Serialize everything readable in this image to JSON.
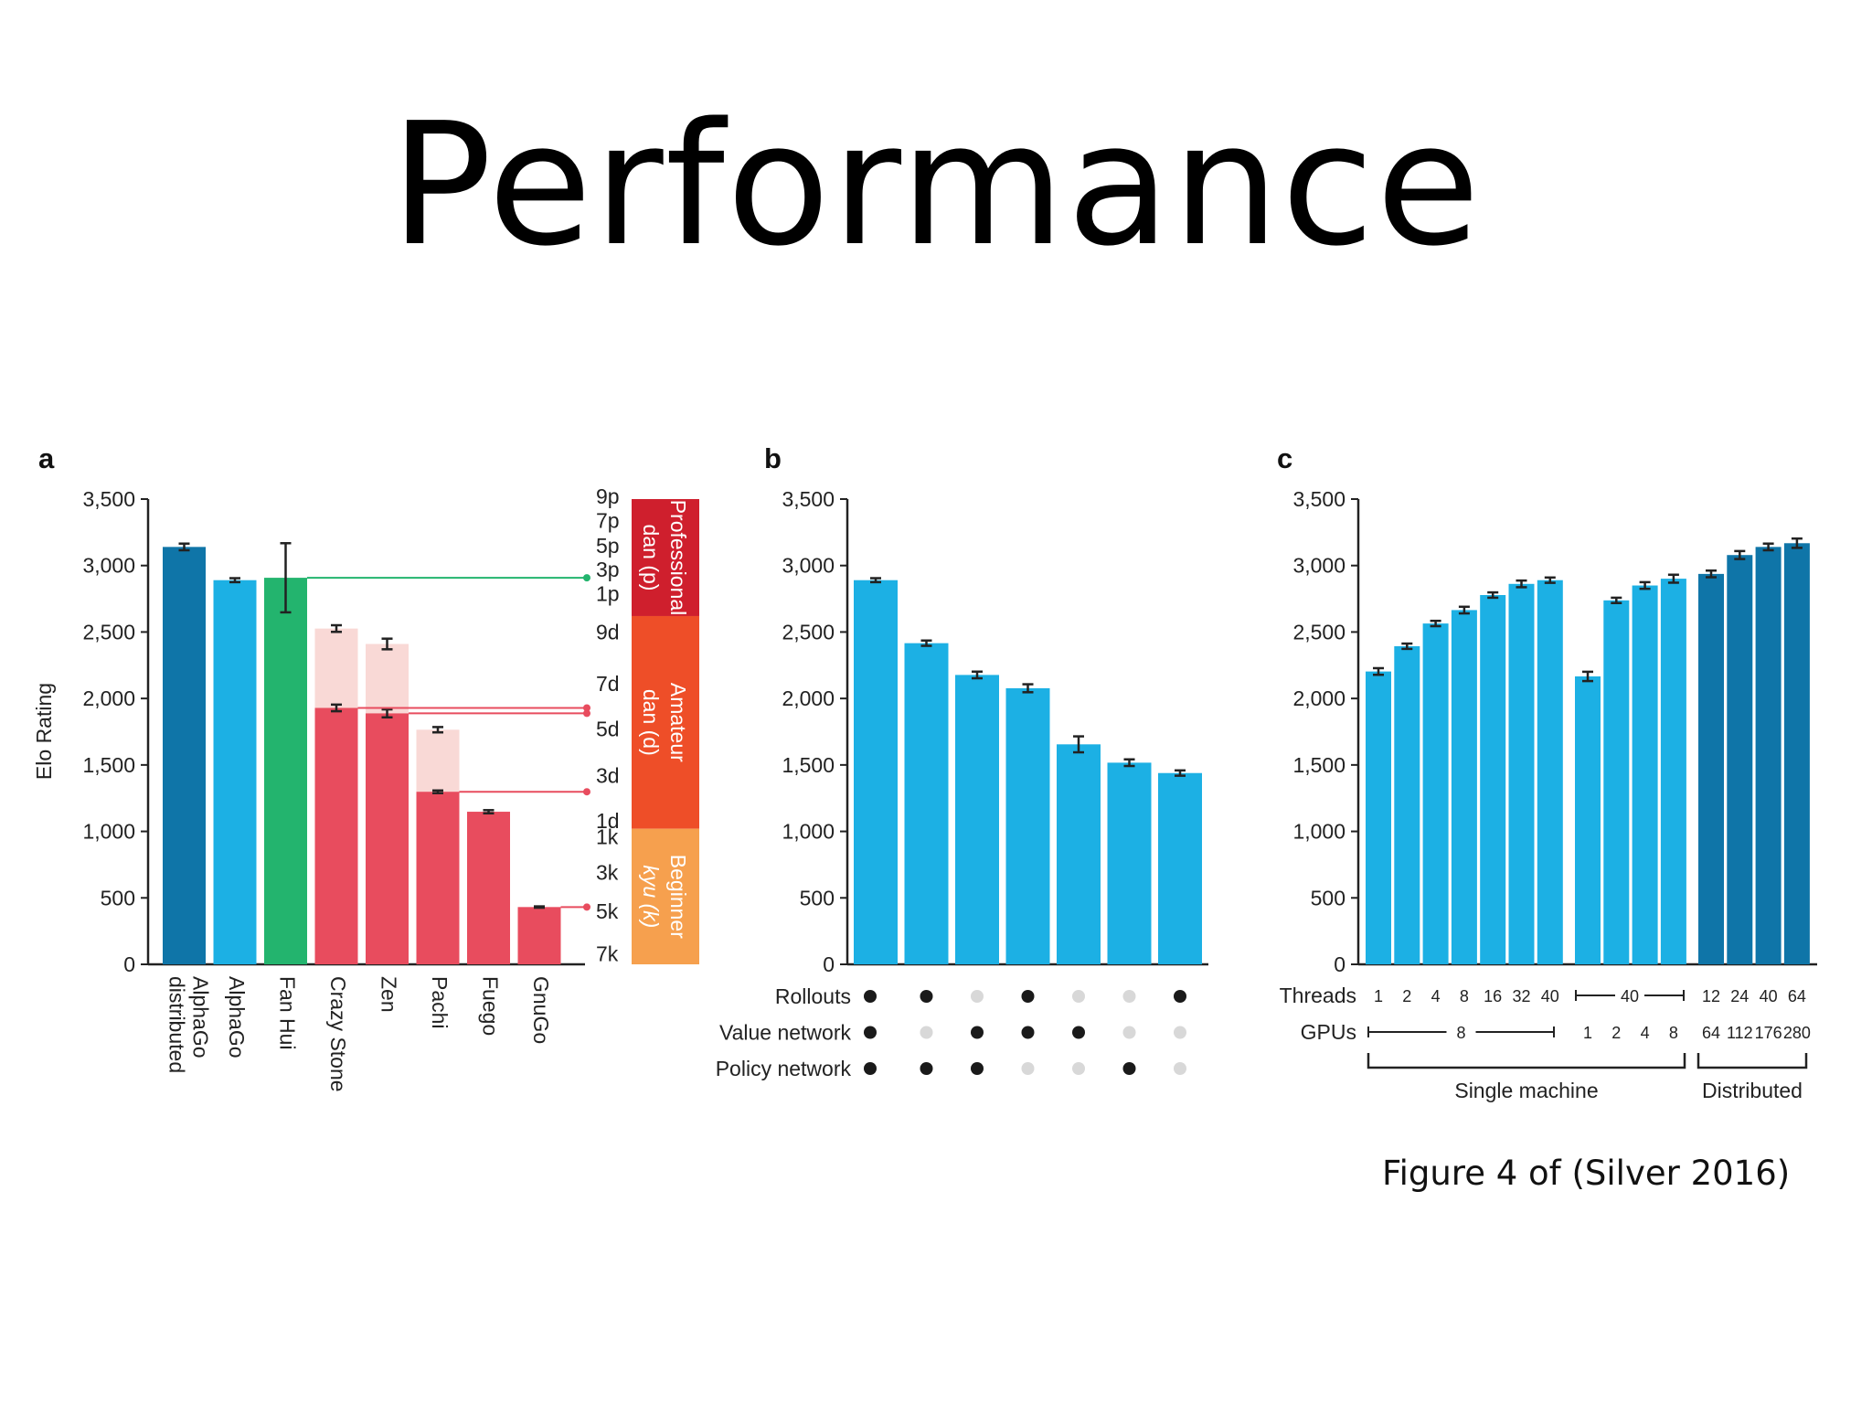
{
  "slide": {
    "title": "Performance",
    "caption": "Figure 4 of (Silver 2016)"
  },
  "colors": {
    "dark_blue": "#0f75a8",
    "light_blue": "#1cb0e4",
    "green": "#23b46e",
    "red": "#e84c5e",
    "pale_red": "#f9d9d6",
    "professional": "#cf1f2d",
    "amateur": "#ee4e28",
    "beginner": "#f6a04e",
    "dot_on": "#1a1a1a",
    "dot_off": "#d8d8d8"
  },
  "chart_data": [
    {
      "panel": "a",
      "type": "bar",
      "ylabel": "Elo Rating",
      "ylim": [
        0,
        3500
      ],
      "yticks": [
        "0",
        "500",
        "1,000",
        "1,500",
        "2,000",
        "2,500",
        "3,000",
        "3,500"
      ],
      "categories": [
        "AlphaGo distributed",
        "AlphaGo",
        "Fan Hui",
        "Crazy Stone",
        "Zen",
        "Pachi",
        "Fuego",
        "GnuGo"
      ],
      "category_lines": [
        [
          "AlphaGo",
          "distributed"
        ],
        [
          "AlphaGo"
        ],
        [
          "Fan Hui"
        ],
        [
          "Crazy Stone"
        ],
        [
          "Zen"
        ],
        [
          "Pachi"
        ],
        [
          "Fuego"
        ],
        [
          "GnuGo"
        ]
      ],
      "values": [
        3140,
        2890,
        2908,
        1929,
        1888,
        1298,
        1148,
        431
      ],
      "errors": [
        25,
        15,
        260,
        25,
        30,
        10,
        12,
        5
      ],
      "handicap_values": [
        null,
        null,
        null,
        2526,
        2410,
        1765,
        null,
        null
      ],
      "handicap_errors": [
        null,
        null,
        null,
        25,
        40,
        20,
        null,
        null
      ],
      "bar_colors": [
        "dark_blue",
        "light_blue",
        "green",
        "red",
        "red",
        "red",
        "red",
        "red"
      ],
      "rank_connectors": [
        2908,
        1929,
        1888,
        1298,
        431
      ],
      "rank_ticks": [
        {
          "label": "9p",
          "elo": 3520
        },
        {
          "label": "7p",
          "elo": 3340
        },
        {
          "label": "5p",
          "elo": 3150
        },
        {
          "label": "3p",
          "elo": 2970
        },
        {
          "label": "1p",
          "elo": 2790
        },
        {
          "label": "9d",
          "elo": 2500
        },
        {
          "label": "7d",
          "elo": 2110
        },
        {
          "label": "5d",
          "elo": 1770
        },
        {
          "label": "3d",
          "elo": 1420
        },
        {
          "label": "1d",
          "elo": 1080
        },
        {
          "label": "1k",
          "elo": 960
        },
        {
          "label": "3k",
          "elo": 690
        },
        {
          "label": "5k",
          "elo": 400
        },
        {
          "label": "7k",
          "elo": 80
        }
      ],
      "rank_bands": [
        {
          "label": "Professional dan (p)",
          "lines": [
            "Professional",
            "dan (p)"
          ],
          "from": 2620,
          "to": 3500,
          "color": "professional",
          "italic_second": false
        },
        {
          "label": "Amateur dan (d)",
          "lines": [
            "Amateur",
            "dan (d)"
          ],
          "from": 1020,
          "to": 2620,
          "color": "amateur",
          "italic_second": false
        },
        {
          "label": "Beginner kyu (k)",
          "lines": [
            "Beginner",
            "kyu (k)"
          ],
          "from": 0,
          "to": 1020,
          "color": "beginner",
          "italic_second": true
        }
      ]
    },
    {
      "panel": "b",
      "type": "bar",
      "ylim": [
        0,
        3500
      ],
      "yticks": [
        "0",
        "500",
        "1,000",
        "1,500",
        "2,000",
        "2,500",
        "3,000",
        "3,500"
      ],
      "values": [
        2890,
        2416,
        2177,
        2077,
        1655,
        1517,
        1439
      ],
      "errors": [
        15,
        20,
        25,
        30,
        60,
        25,
        20
      ],
      "config_rows": [
        {
          "label": "Rollouts",
          "flags": [
            1,
            1,
            0,
            1,
            0,
            0,
            1
          ]
        },
        {
          "label": "Value network",
          "flags": [
            1,
            0,
            1,
            1,
            1,
            0,
            0
          ]
        },
        {
          "label": "Policy network",
          "flags": [
            1,
            1,
            1,
            0,
            0,
            1,
            0
          ]
        }
      ]
    },
    {
      "panel": "c",
      "type": "bar",
      "ylim": [
        0,
        3500
      ],
      "yticks": [
        "0",
        "500",
        "1,000",
        "1,500",
        "2,000",
        "2,500",
        "3,000",
        "3,500"
      ],
      "values": [
        2203,
        2393,
        2564,
        2665,
        2778,
        2862,
        2890,
        2166,
        2738,
        2850,
        2901,
        2937,
        3079,
        3140,
        3168
      ],
      "errors": [
        25,
        20,
        20,
        25,
        20,
        25,
        20,
        35,
        20,
        25,
        30,
        25,
        30,
        25,
        35
      ],
      "groups": [
        7,
        4,
        4
      ],
      "threads_label": "Threads",
      "threads": [
        "1",
        "2",
        "4",
        "8",
        "16",
        "32",
        "40",
        "",
        "",
        "",
        "",
        "12",
        "24",
        "40",
        "64"
      ],
      "threads_span_label": "40",
      "gpus_label": "GPUs",
      "gpus": [
        "",
        "",
        "",
        "",
        "",
        "",
        "",
        "1",
        "2",
        "4",
        "8",
        "64",
        "112",
        "176",
        "280"
      ],
      "gpus_span_label": "8",
      "brackets": [
        "Single machine",
        "Distributed"
      ]
    }
  ]
}
